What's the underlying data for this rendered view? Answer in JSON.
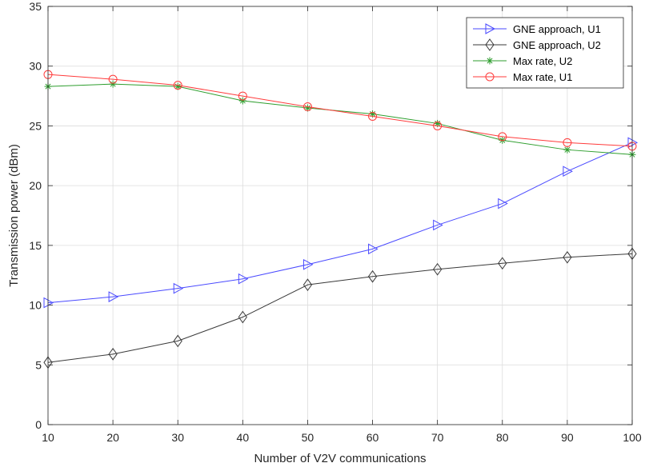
{
  "chart_data": {
    "type": "line",
    "xlabel": "Number of V2V communications",
    "ylabel": "Transmission power (dBm)",
    "xlim": [
      10,
      100
    ],
    "ylim": [
      0,
      35
    ],
    "x_ticks": [
      10,
      20,
      30,
      40,
      50,
      60,
      70,
      80,
      90,
      100
    ],
    "y_ticks": [
      0,
      5,
      10,
      15,
      20,
      25,
      30,
      35
    ],
    "grid": true,
    "legend_position": "top-right",
    "x": [
      10,
      20,
      30,
      40,
      50,
      60,
      70,
      80,
      90,
      100
    ],
    "series": [
      {
        "name": "GNE approach, U1",
        "color": "#4a4aff",
        "marker": "triangle-right",
        "values": [
          10.2,
          10.7,
          11.4,
          12.2,
          13.4,
          14.7,
          16.7,
          18.5,
          21.2,
          23.6
        ]
      },
      {
        "name": "GNE approach, U2",
        "color": "#3a3a3a",
        "marker": "diamond",
        "values": [
          5.2,
          5.9,
          7.0,
          9.0,
          11.7,
          12.4,
          13.0,
          13.5,
          14.0,
          14.3
        ]
      },
      {
        "name": "Max rate, U2",
        "color": "#2e9e2e",
        "marker": "asterisk",
        "values": [
          28.3,
          28.5,
          28.3,
          27.1,
          26.5,
          26.0,
          25.2,
          23.8,
          23.0,
          22.6
        ]
      },
      {
        "name": "Max rate, U1",
        "color": "#ff3b3b",
        "marker": "circle",
        "values": [
          29.3,
          28.9,
          28.4,
          27.5,
          26.6,
          25.8,
          25.0,
          24.1,
          23.6,
          23.3
        ]
      }
    ]
  }
}
